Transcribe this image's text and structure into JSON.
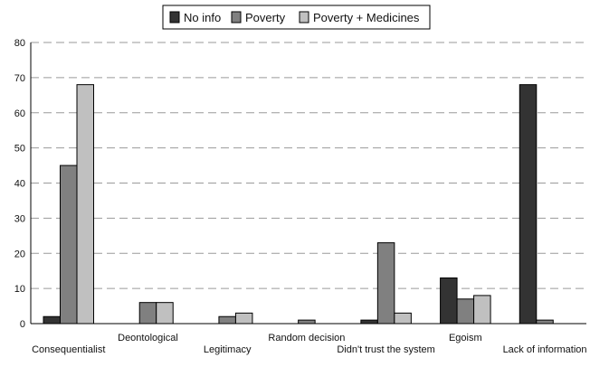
{
  "chart_data": {
    "type": "bar",
    "categories": [
      "Consequentialist",
      "Deontological",
      "Legitimacy",
      "Random decision",
      "Didn't trust the system",
      "Egoism",
      "Lack of information"
    ],
    "series": [
      {
        "name": "No info",
        "color": "#333333",
        "values": [
          2,
          0,
          0,
          0,
          1,
          13,
          68
        ]
      },
      {
        "name": "Poverty",
        "color": "#808080",
        "values": [
          45,
          6,
          2,
          1,
          23,
          7,
          1
        ]
      },
      {
        "name": "Poverty + Medicines",
        "color": "#c0c0c0",
        "values": [
          68,
          6,
          3,
          0,
          3,
          8,
          0
        ]
      }
    ],
    "y_ticks": [
      0,
      10,
      20,
      30,
      40,
      50,
      60,
      70,
      80
    ],
    "ylim": [
      0,
      80
    ],
    "title": "",
    "xlabel": "",
    "ylabel": "",
    "grid": "horizontal dashed",
    "legend_position": "top-center",
    "category_label_style": "alternating-rows"
  }
}
